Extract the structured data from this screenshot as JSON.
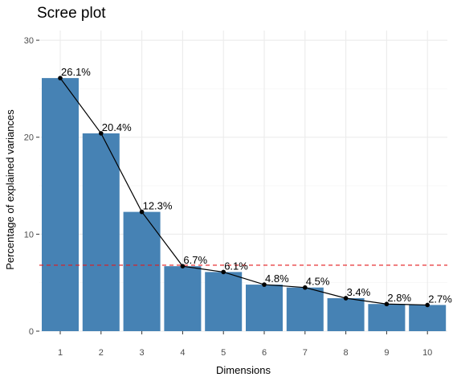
{
  "chart_data": {
    "type": "bar",
    "title": "Scree plot",
    "xlabel": "Dimensions",
    "ylabel": "Percentage of explained variances",
    "categories": [
      "1",
      "2",
      "3",
      "4",
      "5",
      "6",
      "7",
      "8",
      "9",
      "10"
    ],
    "values": [
      26.1,
      20.4,
      12.3,
      6.7,
      6.1,
      4.8,
      4.5,
      3.4,
      2.8,
      2.7
    ],
    "data_labels": [
      "26.1%",
      "20.4%",
      "12.3%",
      "6.7%",
      "6.1%",
      "4.8%",
      "4.5%",
      "3.4%",
      "2.8%",
      "2.7%"
    ],
    "line_overlay": true,
    "reference_line": {
      "y": 6.8,
      "style": "dashed",
      "color": "#e41a1c"
    },
    "ylim": [
      0,
      31
    ],
    "yticks": [
      0,
      10,
      20,
      30
    ],
    "grid": true,
    "legend": "none",
    "colors": {
      "bar": "#4682b4",
      "line": "#000000",
      "grid": "#ebebeb"
    }
  }
}
